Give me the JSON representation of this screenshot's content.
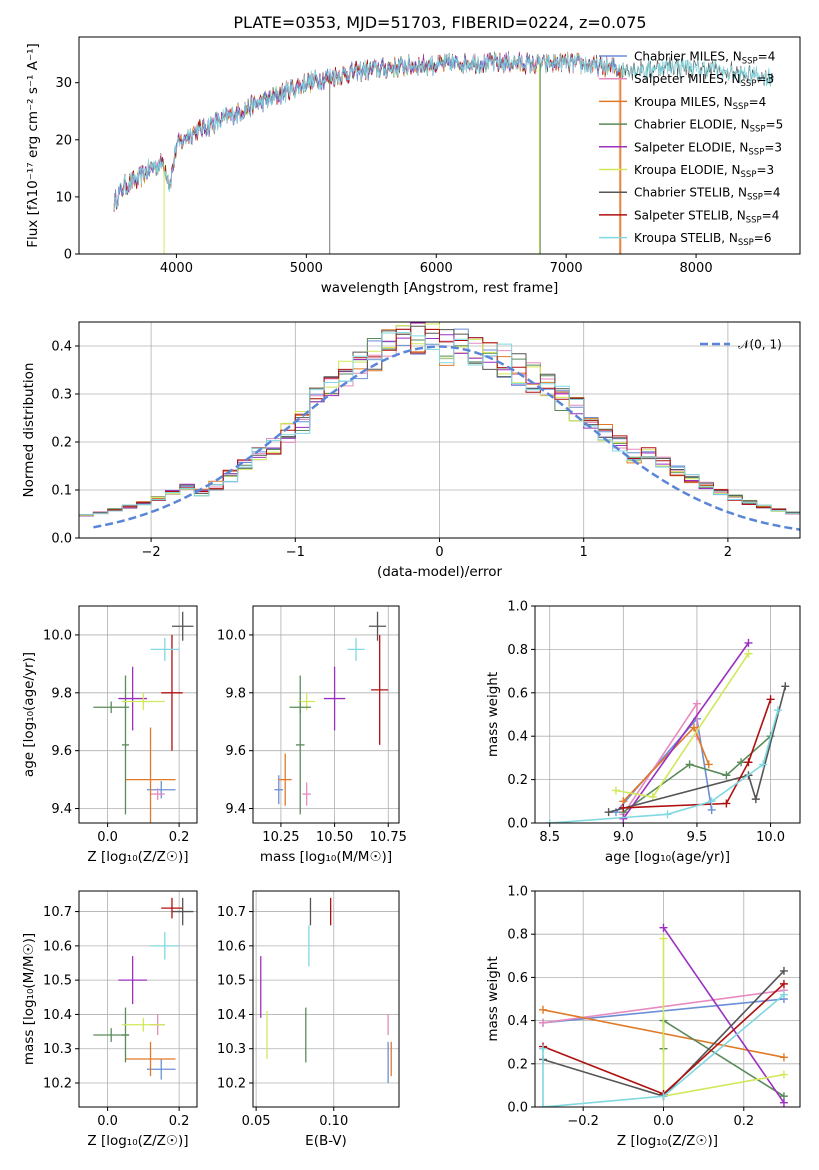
{
  "figure": {
    "title": "PLATE=0353, MJD=51703, FIBERID=0224, z=0.075"
  },
  "colors": {
    "Chabrier MILES": "#6b8fd6",
    "Salpeter MILES": "#e68ac0",
    "Kroupa MILES": "#e07a28",
    "Chabrier ELODIE": "#5a8a5a",
    "Salpeter ELODIE": "#9b30c0",
    "Kroupa ELODIE": "#d2e85a",
    "Chabrier STELIB": "#555555",
    "Salpeter STELIB": "#b01010",
    "Kroupa STELIB": "#80d8e0"
  },
  "chart_data": [
    {
      "id": "spectrum",
      "type": "line",
      "title": "PLATE=0353, MJD=51703, FIBERID=0224, z=0.075",
      "xlabel": "wavelength [Angstrom, rest frame]",
      "ylabel": "Flux [fλ10⁻¹⁷ erg cm⁻² s⁻¹ A⁻¹]",
      "xlim": [
        3250,
        8800
      ],
      "ylim": [
        0,
        38
      ],
      "xticks": [
        4000,
        5000,
        6000,
        7000,
        8000
      ],
      "yticks": [
        0,
        10,
        20,
        30
      ],
      "legend_position": "top-right",
      "legend": [
        {
          "name": "Chabrier MILES",
          "n_ssp": 4
        },
        {
          "name": "Salpeter MILES",
          "n_ssp": 3
        },
        {
          "name": "Kroupa MILES",
          "n_ssp": 4
        },
        {
          "name": "Chabrier ELODIE",
          "n_ssp": 5
        },
        {
          "name": "Salpeter ELODIE",
          "n_ssp": 3
        },
        {
          "name": "Kroupa ELODIE",
          "n_ssp": 3
        },
        {
          "name": "Chabrier STELIB",
          "n_ssp": 4
        },
        {
          "name": "Salpeter STELIB",
          "n_ssp": 4
        },
        {
          "name": "Kroupa STELIB",
          "n_ssp": 6
        }
      ],
      "continuum": {
        "x": [
          3520,
          3600,
          3700,
          3800,
          3900,
          3950,
          4000,
          4100,
          4200,
          4300,
          4400,
          4500,
          4600,
          4700,
          4800,
          4900,
          5000,
          5200,
          5400,
          5600,
          5800,
          6000,
          6200,
          6400,
          6600,
          6800,
          7000,
          7200,
          7400,
          7600,
          7800,
          8000,
          8200,
          8400,
          8600
        ],
        "y": [
          9,
          12,
          13,
          15,
          16,
          12,
          19,
          21,
          22,
          23,
          24,
          25,
          26,
          27,
          28,
          29,
          30,
          31,
          32,
          32.5,
          33,
          33.2,
          33.5,
          33.5,
          33.5,
          33.2,
          33.5,
          33,
          32.5,
          32.2,
          33,
          32.5,
          32,
          31.5,
          31
        ]
      }
    },
    {
      "id": "residuals",
      "type": "line",
      "xlabel": "(data-model)/error",
      "ylabel": "Normed distribution",
      "xlim": [
        -2.5,
        2.5
      ],
      "ylim": [
        0,
        0.45
      ],
      "xticks": [
        -2,
        -1,
        0,
        1,
        2
      ],
      "yticks": [
        0.0,
        0.1,
        0.2,
        0.3,
        0.4
      ],
      "grid": true,
      "legend_position": "top-right",
      "gaussian_label": "𝒩(0, 1)",
      "gaussian_color": "#5b86d8",
      "bin_centers": [
        -2.4,
        -2.2,
        -2.0,
        -1.8,
        -1.6,
        -1.4,
        -1.2,
        -1.0,
        -0.8,
        -0.6,
        -0.4,
        -0.2,
        0.0,
        0.2,
        0.4,
        0.6,
        0.8,
        1.0,
        1.2,
        1.4,
        1.6,
        1.8,
        2.0,
        2.2,
        2.4
      ],
      "hist_base": [
        0.05,
        0.07,
        0.09,
        0.11,
        0.15,
        0.19,
        0.23,
        0.27,
        0.33,
        0.38,
        0.4,
        0.39,
        0.385,
        0.37,
        0.34,
        0.3,
        0.26,
        0.22,
        0.18,
        0.14,
        0.11,
        0.08,
        0.06,
        0.045,
        0.035
      ]
    },
    {
      "id": "Z-age",
      "type": "scatter",
      "xlabel": "Z [log₁₀(Z/Z☉)]",
      "ylabel": "age  [log₁₀(age/yr)]",
      "xlim": [
        -0.08,
        0.25
      ],
      "ylim": [
        9.35,
        10.1
      ],
      "xticks": [
        0.0,
        0.2
      ],
      "yticks": [
        9.4,
        9.6,
        9.8,
        10.0
      ],
      "grid": true,
      "points": [
        {
          "series": "Chabrier MILES",
          "x": 0.15,
          "y": 9.465,
          "xerr": 0.04,
          "yerr": 0.03
        },
        {
          "series": "Salpeter MILES",
          "x": 0.14,
          "y": 9.45,
          "xerr": 0.02,
          "yerr": 0.02
        },
        {
          "series": "Kroupa MILES",
          "x": 0.12,
          "y": 9.5,
          "xerr": 0.07,
          "yerr": 0.18
        },
        {
          "series": "Chabrier ELODIE",
          "x": 0.05,
          "y": 9.62,
          "xerr": 0.01,
          "yerr": 0.24
        },
        {
          "series": "Salpeter ELODIE",
          "x": 0.07,
          "y": 9.78,
          "xerr": 0.04,
          "yerr": 0.11
        },
        {
          "series": "Kroupa ELODIE",
          "x": 0.1,
          "y": 9.77,
          "xerr": 0.06,
          "yerr": 0.03
        },
        {
          "series": "Chabrier STELIB",
          "x": 0.21,
          "y": 10.03,
          "xerr": 0.03,
          "yerr": 0.05
        },
        {
          "series": "Salpeter STELIB",
          "x": 0.18,
          "y": 9.8,
          "xerr": 0.03,
          "yerr": 0.2
        },
        {
          "series": "Kroupa STELIB",
          "x": 0.16,
          "y": 9.95,
          "xerr": 0.04,
          "yerr": 0.04
        },
        {
          "series": "Chabrier ELODIE",
          "x": 0.01,
          "y": 9.75,
          "xerr": 0.05,
          "yerr": 0.02
        }
      ]
    },
    {
      "id": "mass-age",
      "type": "scatter",
      "xlabel": "mass [log₁₀(M/M☉)]",
      "xlim": [
        10.12,
        10.8
      ],
      "ylim": [
        9.35,
        10.1
      ],
      "xticks": [
        10.25,
        10.5,
        10.75
      ],
      "yticks": [
        9.4,
        9.6,
        9.8,
        10.0
      ],
      "grid": true,
      "points": [
        {
          "series": "Chabrier MILES",
          "x": 10.24,
          "y": 9.465,
          "xerr": 0.02,
          "yerr": 0.05
        },
        {
          "series": "Salpeter MILES",
          "x": 10.37,
          "y": 9.45,
          "xerr": 0.02,
          "yerr": 0.04
        },
        {
          "series": "Kroupa MILES",
          "x": 10.27,
          "y": 9.5,
          "xerr": 0.03,
          "yerr": 0.09
        },
        {
          "series": "Chabrier ELODIE",
          "x": 10.34,
          "y": 9.62,
          "xerr": 0.02,
          "yerr": 0.24
        },
        {
          "series": "Salpeter ELODIE",
          "x": 10.5,
          "y": 9.78,
          "xerr": 0.05,
          "yerr": 0.11
        },
        {
          "series": "Kroupa ELODIE",
          "x": 10.37,
          "y": 9.77,
          "xerr": 0.04,
          "yerr": 0.03
        },
        {
          "series": "Chabrier STELIB",
          "x": 10.7,
          "y": 10.03,
          "xerr": 0.04,
          "yerr": 0.05
        },
        {
          "series": "Salpeter STELIB",
          "x": 10.71,
          "y": 9.81,
          "xerr": 0.04,
          "yerr": 0.19
        },
        {
          "series": "Kroupa STELIB",
          "x": 10.6,
          "y": 9.95,
          "xerr": 0.04,
          "yerr": 0.04
        },
        {
          "series": "Chabrier ELODIE",
          "x": 10.34,
          "y": 9.75,
          "xerr": 0.05,
          "yerr": 0.02
        }
      ]
    },
    {
      "id": "age-weight",
      "type": "line",
      "xlabel": "age  [log₁₀(age/yr)]",
      "ylabel": "mass weight",
      "xlim": [
        8.4,
        10.2
      ],
      "ylim": [
        0,
        1
      ],
      "xticks": [
        8.5,
        9.0,
        9.5,
        10.0
      ],
      "yticks": [
        0.0,
        0.2,
        0.4,
        0.6,
        0.8,
        1.0
      ],
      "grid": true,
      "series": [
        {
          "name": "Chabrier MILES",
          "x": [
            8.95,
            9.5,
            9.6
          ],
          "y": [
            0.05,
            0.48,
            0.06
          ]
        },
        {
          "name": "Salpeter MILES",
          "x": [
            9.0,
            9.5,
            9.5
          ],
          "y": [
            0.04,
            0.55,
            0.4
          ]
        },
        {
          "name": "Kroupa MILES",
          "x": [
            9.0,
            9.48,
            9.58
          ],
          "y": [
            0.1,
            0.44,
            0.27
          ]
        },
        {
          "name": "Chabrier ELODIE",
          "x": [
            9.0,
            9.45,
            9.7,
            9.8,
            10.0
          ],
          "y": [
            0.05,
            0.27,
            0.22,
            0.28,
            0.4
          ]
        },
        {
          "name": "Salpeter ELODIE",
          "x": [
            9.0,
            9.85
          ],
          "y": [
            0.02,
            0.83
          ]
        },
        {
          "name": "Kroupa ELODIE",
          "x": [
            8.95,
            9.2,
            9.85
          ],
          "y": [
            0.15,
            0.12,
            0.78
          ]
        },
        {
          "name": "Chabrier STELIB",
          "x": [
            8.9,
            9.85,
            9.9,
            10.1
          ],
          "y": [
            0.05,
            0.22,
            0.11,
            0.63
          ]
        },
        {
          "name": "Salpeter STELIB",
          "x": [
            9.0,
            9.7,
            9.85,
            10.0
          ],
          "y": [
            0.07,
            0.09,
            0.28,
            0.57
          ]
        },
        {
          "name": "Kroupa STELIB",
          "x": [
            8.5,
            9.3,
            9.6,
            9.95,
            10.05
          ],
          "y": [
            0.0,
            0.04,
            0.1,
            0.27,
            0.52
          ]
        }
      ]
    },
    {
      "id": "Z-mass",
      "type": "scatter",
      "xlabel": "Z [log₁₀(Z/Z☉)]",
      "ylabel": "mass [log₁₀(M/M☉)]",
      "xlim": [
        -0.08,
        0.25
      ],
      "ylim": [
        10.13,
        10.76
      ],
      "xticks": [
        0.0,
        0.2
      ],
      "yticks": [
        10.2,
        10.3,
        10.4,
        10.5,
        10.6,
        10.7
      ],
      "grid": true,
      "points": [
        {
          "series": "Chabrier MILES",
          "x": 0.15,
          "y": 10.24,
          "xerr": 0.04,
          "yerr": 0.03
        },
        {
          "series": "Salpeter MILES",
          "x": 0.14,
          "y": 10.37,
          "xerr": 0.02,
          "yerr": 0.03
        },
        {
          "series": "Kroupa MILES",
          "x": 0.12,
          "y": 10.27,
          "xerr": 0.07,
          "yerr": 0.05
        },
        {
          "series": "Chabrier ELODIE",
          "x": 0.05,
          "y": 10.34,
          "xerr": 0.01,
          "yerr": 0.08
        },
        {
          "series": "Salpeter ELODIE",
          "x": 0.07,
          "y": 10.5,
          "xerr": 0.04,
          "yerr": 0.07
        },
        {
          "series": "Kroupa ELODIE",
          "x": 0.1,
          "y": 10.37,
          "xerr": 0.06,
          "yerr": 0.02
        },
        {
          "series": "Chabrier STELIB",
          "x": 0.21,
          "y": 10.7,
          "xerr": 0.03,
          "yerr": 0.04
        },
        {
          "series": "Salpeter STELIB",
          "x": 0.18,
          "y": 10.71,
          "xerr": 0.03,
          "yerr": 0.03
        },
        {
          "series": "Kroupa STELIB",
          "x": 0.16,
          "y": 10.6,
          "xerr": 0.04,
          "yerr": 0.04
        },
        {
          "series": "Chabrier ELODIE",
          "x": 0.01,
          "y": 10.34,
          "xerr": 0.05,
          "yerr": 0.02
        }
      ]
    },
    {
      "id": "EBV-mass",
      "type": "scatter",
      "xlabel": "E(B-V)",
      "xlim": [
        0.048,
        0.142
      ],
      "ylim": [
        10.13,
        10.76
      ],
      "xticks": [
        0.05,
        0.1
      ],
      "yticks": [
        10.2,
        10.3,
        10.4,
        10.5,
        10.6,
        10.7
      ],
      "grid": true,
      "points": [
        {
          "series": "Chabrier MILES",
          "x": 0.135,
          "y": 10.26,
          "xerr": 0.0,
          "yerr": 0.06
        },
        {
          "series": "Salpeter MILES",
          "x": 0.135,
          "y": 10.37,
          "xerr": 0.0,
          "yerr": 0.03
        },
        {
          "series": "Kroupa MILES",
          "x": 0.137,
          "y": 10.27,
          "xerr": 0.0,
          "yerr": 0.05
        },
        {
          "series": "Chabrier ELODIE",
          "x": 0.082,
          "y": 10.34,
          "xerr": 0.0,
          "yerr": 0.08
        },
        {
          "series": "Salpeter ELODIE",
          "x": 0.053,
          "y": 10.48,
          "xerr": 0.0,
          "yerr": 0.09
        },
        {
          "series": "Kroupa ELODIE",
          "x": 0.057,
          "y": 10.34,
          "xerr": 0.0,
          "yerr": 0.07
        },
        {
          "series": "Chabrier STELIB",
          "x": 0.085,
          "y": 10.7,
          "xerr": 0.0,
          "yerr": 0.04
        },
        {
          "series": "Salpeter STELIB",
          "x": 0.098,
          "y": 10.7,
          "xerr": 0.0,
          "yerr": 0.04
        },
        {
          "series": "Kroupa STELIB",
          "x": 0.084,
          "y": 10.6,
          "xerr": 0.0,
          "yerr": 0.06
        }
      ]
    },
    {
      "id": "Z-weight",
      "type": "line",
      "xlabel": "Z [log₁₀(Z/Z☉)]",
      "ylabel": "mass weight",
      "xlim": [
        -0.32,
        0.34
      ],
      "ylim": [
        0,
        1
      ],
      "xticks": [
        -0.2,
        0.0,
        0.2
      ],
      "yticks": [
        0.0,
        0.2,
        0.4,
        0.6,
        0.8,
        1.0
      ],
      "grid": true,
      "series": [
        {
          "name": "Chabrier MILES",
          "x": [
            -0.3,
            0.3
          ],
          "y": [
            0.39,
            0.5
          ]
        },
        {
          "name": "Salpeter MILES",
          "x": [
            -0.3,
            0.3
          ],
          "y": [
            0.39,
            0.54
          ]
        },
        {
          "name": "Kroupa MILES",
          "x": [
            -0.3,
            0.3
          ],
          "y": [
            0.45,
            0.23
          ]
        },
        {
          "name": "Chabrier ELODIE",
          "x": [
            0.0,
            0.0,
            0.3
          ],
          "y": [
            0.27,
            0.4,
            0.05
          ]
        },
        {
          "name": "Salpeter ELODIE",
          "x": [
            0.0,
            0.3
          ],
          "y": [
            0.83,
            0.02
          ]
        },
        {
          "name": "Kroupa ELODIE",
          "x": [
            0.0,
            0.0,
            0.3
          ],
          "y": [
            0.78,
            0.05,
            0.15
          ]
        },
        {
          "name": "Chabrier STELIB",
          "x": [
            -0.3,
            0.0,
            0.3
          ],
          "y": [
            0.22,
            0.05,
            0.63
          ]
        },
        {
          "name": "Salpeter STELIB",
          "x": [
            -0.3,
            0.0,
            0.3
          ],
          "y": [
            0.28,
            0.06,
            0.57
          ]
        },
        {
          "name": "Kroupa STELIB",
          "x": [
            -0.3,
            -0.3,
            0.0,
            0.3
          ],
          "y": [
            0.27,
            0.0,
            0.05,
            0.52
          ]
        }
      ]
    }
  ]
}
